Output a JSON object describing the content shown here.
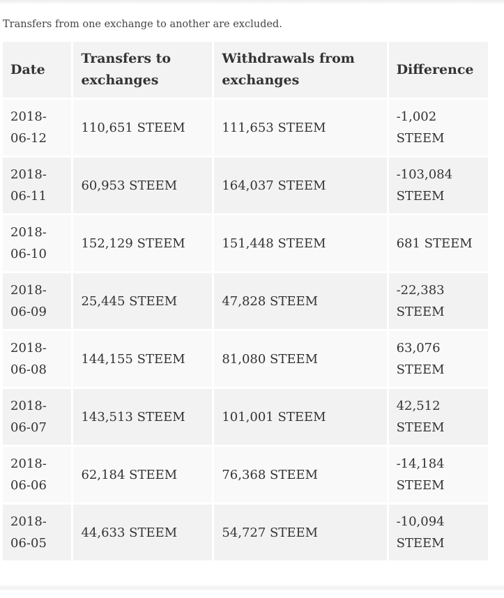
{
  "note": "Transfers from one exchange to another are excluded.",
  "table": {
    "headers": {
      "date": "Date",
      "to": "Transfers to exchanges",
      "from": "Withdrawals from exchanges",
      "diff": "Difference"
    },
    "rows": [
      {
        "date": "2018-06-12",
        "to": "110,651 STEEM",
        "from": "111,653 STEEM",
        "diff": "-1,002 STEEM"
      },
      {
        "date": "2018-06-11",
        "to": "60,953 STEEM",
        "from": "164,037 STEEM",
        "diff": "-103,084 STEEM"
      },
      {
        "date": "2018-06-10",
        "to": "152,129 STEEM",
        "from": "151,448 STEEM",
        "diff": "681 STEEM"
      },
      {
        "date": "2018-06-09",
        "to": "25,445 STEEM",
        "from": "47,828 STEEM",
        "diff": "-22,383 STEEM"
      },
      {
        "date": "2018-06-08",
        "to": "144,155 STEEM",
        "from": "81,080 STEEM",
        "diff": "63,076 STEEM"
      },
      {
        "date": "2018-06-07",
        "to": "143,513 STEEM",
        "from": "101,001 STEEM",
        "diff": "42,512 STEEM"
      },
      {
        "date": "2018-06-06",
        "to": "62,184 STEEM",
        "from": "76,368 STEEM",
        "diff": "-14,184 STEEM"
      },
      {
        "date": "2018-06-05",
        "to": "44,633 STEEM",
        "from": "54,727 STEEM",
        "diff": "-10,094 STEEM"
      }
    ]
  }
}
